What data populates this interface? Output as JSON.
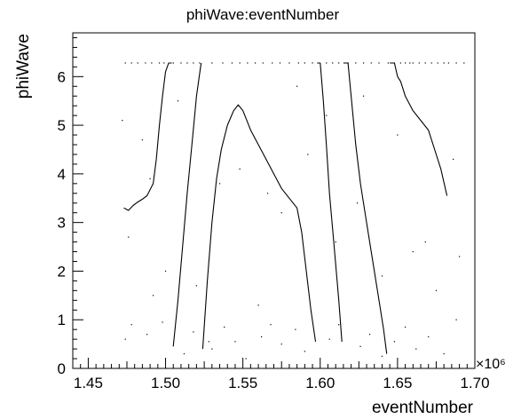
{
  "chart_data": {
    "type": "scatter",
    "title": "phiWave:eventNumber",
    "xlabel": "eventNumber",
    "ylabel": "phiWave",
    "x_scale_label": "×10⁶",
    "xlim": [
      1.44,
      1.7
    ],
    "ylim": [
      0,
      6.9
    ],
    "x_ticks": [
      "1.45",
      "1.50",
      "1.55",
      "1.60",
      "1.65",
      "1.70"
    ],
    "x_tick_values": [
      1.45,
      1.5,
      1.55,
      1.6,
      1.65,
      1.7
    ],
    "y_ticks": [
      "0",
      "1",
      "2",
      "3",
      "4",
      "5",
      "6"
    ],
    "y_tick_values": [
      0,
      1,
      2,
      3,
      4,
      5,
      6
    ],
    "grid": false,
    "marker_color": "#000000",
    "curves": [
      {
        "x": [
          1.473,
          1.476,
          1.479,
          1.482,
          1.485,
          1.488,
          1.492,
          1.494,
          1.496,
          1.498,
          1.5,
          1.502,
          1.503,
          1.5035,
          1.504
        ],
        "y": [
          3.3,
          3.25,
          3.35,
          3.42,
          3.48,
          3.55,
          3.8,
          4.3,
          5.0,
          5.6,
          6.1,
          6.28,
          6.28,
          6.28,
          6.28
        ]
      },
      {
        "x": [
          1.505,
          1.508,
          1.511,
          1.514,
          1.517,
          1.52,
          1.523
        ],
        "y": [
          0.45,
          1.4,
          2.5,
          3.6,
          4.6,
          5.6,
          6.28
        ]
      },
      {
        "x": [
          1.524,
          1.527,
          1.53,
          1.533,
          1.536,
          1.54,
          1.544,
          1.547,
          1.55,
          1.555,
          1.56,
          1.565,
          1.57,
          1.575,
          1.58,
          1.585,
          1.588,
          1.591,
          1.594,
          1.597
        ],
        "y": [
          0.4,
          1.8,
          3.0,
          3.9,
          4.5,
          5.0,
          5.3,
          5.42,
          5.3,
          4.9,
          4.6,
          4.3,
          4.0,
          3.7,
          3.5,
          3.3,
          2.8,
          2.0,
          1.2,
          0.55
        ]
      },
      {
        "x": [
          1.598,
          1.6,
          1.602,
          1.604,
          1.606,
          1.609,
          1.612,
          1.614
        ],
        "y": [
          6.28,
          6.28,
          5.5,
          4.6,
          3.6,
          2.5,
          1.4,
          0.55
        ]
      },
      {
        "x": [
          1.615,
          1.618,
          1.62,
          1.623,
          1.626,
          1.63,
          1.634,
          1.638,
          1.641,
          1.643
        ],
        "y": [
          6.28,
          6.28,
          5.6,
          4.6,
          3.8,
          3.0,
          2.2,
          1.4,
          0.8,
          0.3
        ]
      },
      {
        "x": [
          1.645,
          1.648,
          1.65,
          1.652,
          1.655,
          1.66,
          1.665,
          1.67,
          1.674,
          1.678,
          1.682
        ],
        "y": [
          6.28,
          6.28,
          6.0,
          5.9,
          5.6,
          5.3,
          5.1,
          4.9,
          4.5,
          4.1,
          3.55
        ]
      }
    ],
    "scatter_points": {
      "x": [
        1.474,
        1.478,
        1.482,
        1.487,
        1.491,
        1.496,
        1.499,
        1.505,
        1.51,
        1.514,
        1.518,
        1.522,
        1.53,
        1.537,
        1.543,
        1.548,
        1.553,
        1.558,
        1.563,
        1.569,
        1.574,
        1.58,
        1.586,
        1.59,
        1.595,
        1.604,
        1.608,
        1.612,
        1.618,
        1.623,
        1.628,
        1.633,
        1.638,
        1.644,
        1.648,
        1.652,
        1.655,
        1.658,
        1.66,
        1.664,
        1.668,
        1.672,
        1.676,
        1.68,
        1.683,
        1.688,
        1.693,
        1.474,
        1.478,
        1.488,
        1.492,
        1.498,
        1.512,
        1.518,
        1.53,
        1.538,
        1.545,
        1.552,
        1.562,
        1.568,
        1.575,
        1.584,
        1.59,
        1.606,
        1.612,
        1.626,
        1.632,
        1.64,
        1.648,
        1.655,
        1.662,
        1.67,
        1.68,
        1.688,
        1.472,
        1.485,
        1.5,
        1.52,
        1.535,
        1.56,
        1.575,
        1.592,
        1.61,
        1.628,
        1.64,
        1.66,
        1.675,
        1.69,
        1.476,
        1.49,
        1.508,
        1.528,
        1.548,
        1.566,
        1.585,
        1.604,
        1.624,
        1.65,
        1.668,
        1.686
      ],
      "y": [
        6.28,
        6.28,
        6.28,
        6.28,
        6.28,
        6.28,
        6.28,
        6.28,
        6.28,
        6.28,
        6.28,
        6.28,
        6.28,
        6.28,
        6.28,
        6.28,
        6.28,
        6.28,
        6.28,
        6.28,
        6.28,
        6.28,
        6.28,
        6.28,
        6.28,
        6.28,
        6.28,
        6.28,
        6.28,
        6.28,
        6.28,
        6.28,
        6.28,
        6.28,
        6.28,
        6.28,
        6.28,
        6.28,
        6.28,
        6.28,
        6.28,
        6.28,
        6.28,
        6.28,
        6.28,
        6.28,
        6.28,
        0.6,
        0.9,
        0.7,
        1.5,
        0.95,
        0.3,
        0.75,
        0.4,
        0.85,
        0.55,
        0.2,
        0.65,
        0.9,
        0.5,
        0.8,
        0.35,
        0.6,
        0.9,
        0.45,
        0.7,
        0.25,
        0.55,
        0.85,
        0.4,
        0.65,
        0.3,
        1.0,
        5.1,
        4.7,
        2.0,
        1.7,
        3.8,
        1.3,
        3.2,
        4.4,
        2.6,
        5.6,
        1.9,
        2.4,
        1.6,
        2.3,
        2.7,
        3.9,
        5.5,
        0.55,
        4.1,
        3.6,
        5.8,
        5.2,
        3.4,
        4.8,
        2.6,
        4.3
      ]
    }
  }
}
